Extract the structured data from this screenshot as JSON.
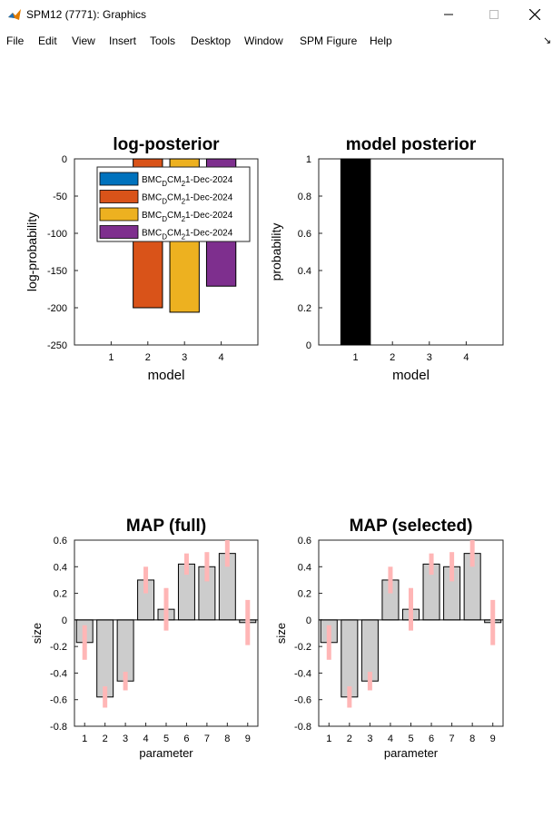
{
  "window": {
    "title": "SPM12 (7771): Graphics",
    "minimize_icon": "minimize-icon",
    "maximize_icon": "maximize-icon",
    "close_icon": "close-icon"
  },
  "menu": [
    "File",
    "Edit",
    "View",
    "Insert",
    "Tools",
    "Desktop",
    "Window",
    "SPM Figure",
    "Help"
  ],
  "chart_data": [
    {
      "type": "bar",
      "title": "log-posterior",
      "xlabel": "model",
      "ylabel": "log-probability",
      "categories": [
        "1",
        "2",
        "3",
        "4"
      ],
      "values": [
        0,
        -200,
        -206,
        -171
      ],
      "ylim": [
        -250,
        0
      ],
      "yticks": [
        "0",
        "-50",
        "-100",
        "-150",
        "-200",
        "-250"
      ],
      "colors": [
        "#0072bd",
        "#d95319",
        "#edb120",
        "#7e2f8e"
      ],
      "legend": {
        "placement": "top-center",
        "entries": [
          {
            "main": "BMC",
            "sub": "D",
            "mid": "CM",
            "sub2": "2",
            "tail": "1-Dec-2024"
          },
          {
            "main": "BMC",
            "sub": "D",
            "mid": "CM",
            "sub2": "2",
            "tail": "1-Dec-2024"
          },
          {
            "main": "BMC",
            "sub": "D",
            "mid": "CM",
            "sub2": "2",
            "tail": "1-Dec-2024"
          },
          {
            "main": "BMC",
            "sub": "D",
            "mid": "CM",
            "sub2": "2",
            "tail": "1-Dec-2024"
          }
        ]
      }
    },
    {
      "type": "bar",
      "title": "model posterior",
      "xlabel": "model",
      "ylabel": "probability",
      "categories": [
        "1",
        "2",
        "3",
        "4"
      ],
      "values": [
        1,
        0,
        0,
        0
      ],
      "ylim": [
        0,
        1
      ],
      "yticks": [
        "1",
        "0.8",
        "0.6",
        "0.4",
        "0.2",
        "0"
      ],
      "color": "#000000"
    },
    {
      "type": "bar",
      "title": "MAP (full)",
      "xlabel": "parameter",
      "ylabel": "size",
      "categories": [
        "1",
        "2",
        "3",
        "4",
        "5",
        "6",
        "7",
        "8",
        "9"
      ],
      "values": [
        -0.17,
        -0.58,
        -0.46,
        0.3,
        0.08,
        0.42,
        0.4,
        0.5,
        -0.02
      ],
      "errors": [
        0.13,
        0.08,
        0.07,
        0.1,
        0.16,
        0.08,
        0.11,
        0.1,
        0.17
      ],
      "ylim": [
        -0.8,
        0.6
      ],
      "yticks": [
        "0.6",
        "0.4",
        "0.2",
        "0",
        "-0.2",
        "-0.4",
        "-0.6",
        "-0.8"
      ],
      "bar_color": "#cccccc",
      "error_color": "#ffb6b6"
    },
    {
      "type": "bar",
      "title": "MAP (selected)",
      "xlabel": "parameter",
      "ylabel": "size",
      "categories": [
        "1",
        "2",
        "3",
        "4",
        "5",
        "6",
        "7",
        "8",
        "9"
      ],
      "values": [
        -0.17,
        -0.58,
        -0.46,
        0.3,
        0.08,
        0.42,
        0.4,
        0.5,
        -0.02
      ],
      "errors": [
        0.13,
        0.08,
        0.07,
        0.1,
        0.16,
        0.08,
        0.11,
        0.1,
        0.17
      ],
      "ylim": [
        -0.8,
        0.6
      ],
      "yticks": [
        "0.6",
        "0.4",
        "0.2",
        "0",
        "-0.2",
        "-0.4",
        "-0.6",
        "-0.8"
      ],
      "bar_color": "#cccccc",
      "error_color": "#ffb6b6"
    }
  ]
}
